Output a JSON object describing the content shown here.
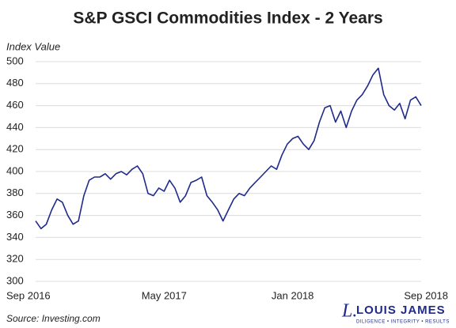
{
  "chart_data": {
    "type": "line",
    "title": "S&P GSCI Commodities Index - 2 Years",
    "y_label": "Index Value",
    "source": "Source: Investing.com",
    "logo": {
      "name": "LOUIS JAMES",
      "tagline": "DILIGENCE • INTEGRITY • RESULTS"
    },
    "categories": [
      "Sep 2016",
      null,
      null,
      null,
      null,
      null,
      null,
      null,
      null,
      null,
      null,
      null,
      null,
      null,
      null,
      null,
      null,
      null,
      null,
      null,
      null,
      null,
      null,
      null,
      "May 2017",
      null,
      null,
      null,
      null,
      null,
      null,
      null,
      null,
      null,
      null,
      null,
      null,
      null,
      null,
      null,
      null,
      null,
      null,
      null,
      null,
      null,
      null,
      null,
      "Jan 2018",
      null,
      null,
      null,
      null,
      null,
      null,
      null,
      null,
      null,
      null,
      null,
      null,
      null,
      null,
      null,
      null,
      null,
      null,
      null,
      null,
      null,
      null,
      null,
      "Sep 2018"
    ],
    "series": [
      {
        "name": "S&P GSCI",
        "color": "#1f2a8c",
        "values": [
          355,
          348,
          352,
          365,
          375,
          372,
          360,
          352,
          355,
          378,
          392,
          395,
          395,
          398,
          393,
          398,
          400,
          397,
          402,
          405,
          398,
          380,
          378,
          385,
          382,
          392,
          385,
          372,
          378,
          390,
          392,
          395,
          378,
          372,
          365,
          355,
          365,
          375,
          380,
          378,
          385,
          390,
          395,
          400,
          405,
          402,
          415,
          425,
          430,
          432,
          425,
          420,
          428,
          445,
          458,
          460,
          445,
          455,
          440,
          455,
          465,
          470,
          478,
          488,
          494,
          470,
          460,
          456,
          462,
          448,
          465,
          468,
          460
        ]
      }
    ],
    "ylim": [
      300,
      500
    ],
    "yticks": [
      300,
      320,
      340,
      360,
      380,
      400,
      420,
      440,
      460,
      480,
      500
    ],
    "grid": true
  }
}
